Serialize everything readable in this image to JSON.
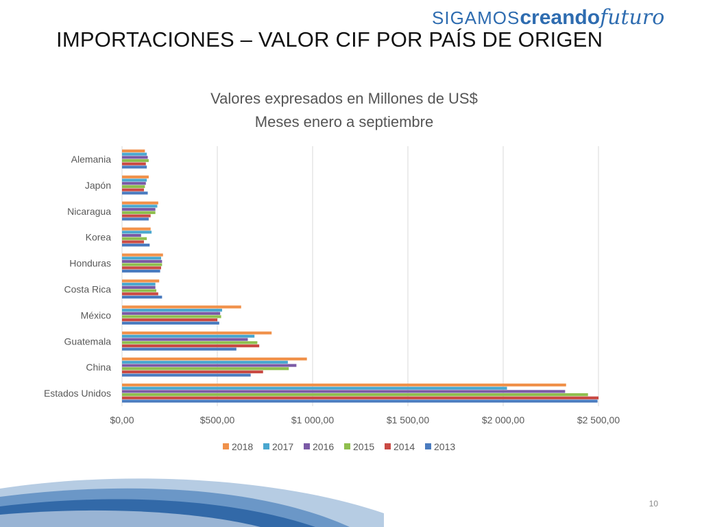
{
  "logo": {
    "part1": "SIGAMOS",
    "part2": "creando",
    "part3": "futuro"
  },
  "slide": {
    "title": "IMPORTACIONES –  VALOR CIF POR PAÍS DE ORIGEN",
    "page_number": "10"
  },
  "colors": {
    "2018": "#f0914a",
    "2017": "#4aa7cf",
    "2016": "#7b5aa6",
    "2015": "#8fbf4e",
    "2014": "#c94a44",
    "2013": "#4a7bbf",
    "grid": "#d9d9d9",
    "brand": "#2e6cb0"
  },
  "chart_data": {
    "type": "bar",
    "orientation": "horizontal",
    "title": "Valores expresados en Millones de US$",
    "subtitle": "Meses enero a septiembre",
    "categories": [
      "Estados Unidos",
      "China",
      "Guatemala",
      "México",
      "Costa Rica",
      "Honduras",
      "Korea",
      "Nicaragua",
      "Japón",
      "Alemania"
    ],
    "series": [
      {
        "name": "2018",
        "values": [
          2330,
          970,
          785,
          625,
          195,
          215,
          150,
          190,
          140,
          120
        ]
      },
      {
        "name": "2017",
        "values": [
          2020,
          870,
          695,
          525,
          175,
          205,
          155,
          185,
          130,
          130
        ]
      },
      {
        "name": "2016",
        "values": [
          2325,
          915,
          660,
          515,
          175,
          210,
          100,
          175,
          125,
          135
        ]
      },
      {
        "name": "2015",
        "values": [
          2445,
          875,
          710,
          520,
          180,
          210,
          130,
          175,
          120,
          140
        ]
      },
      {
        "name": "2014",
        "values": [
          2500,
          740,
          720,
          500,
          190,
          205,
          115,
          150,
          115,
          125
        ]
      },
      {
        "name": "2013",
        "values": [
          2495,
          675,
          600,
          510,
          210,
          200,
          145,
          140,
          135,
          130
        ]
      }
    ],
    "xlim": [
      0,
      2500
    ],
    "tick_labels": [
      "$0,00",
      "$500,00",
      "$1 000,00",
      "$1 500,00",
      "$2 000,00",
      "$2 500,00"
    ],
    "grid": true,
    "legend_position": "bottom"
  }
}
